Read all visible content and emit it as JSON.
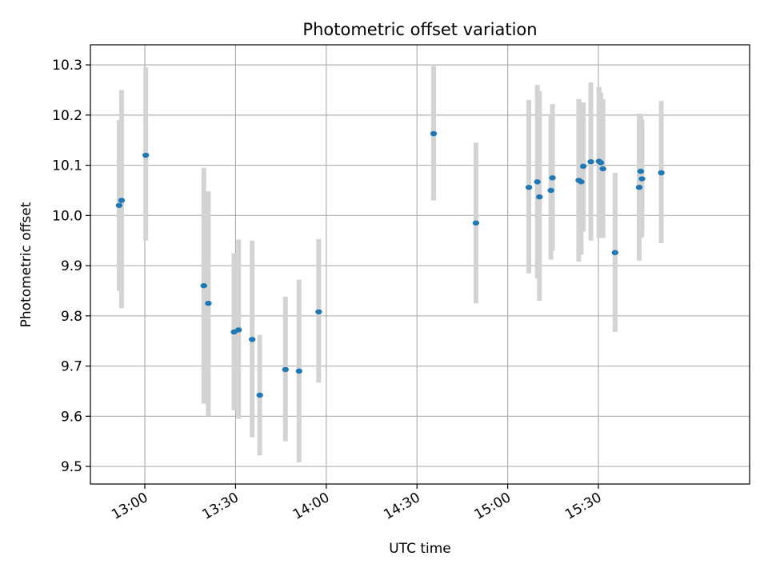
{
  "chart_data": {
    "type": "scatter",
    "title": "Photometric offset variation",
    "xlabel": "UTC time",
    "ylabel": "Photometric offset",
    "xlim": [
      "12:42",
      "16:20"
    ],
    "ylim": [
      9.465,
      10.34
    ],
    "grid": true,
    "x_ticks": [
      "13:00",
      "13:30",
      "14:00",
      "14:30",
      "15:00",
      "15:30"
    ],
    "y_ticks": [
      "9.5",
      "9.6",
      "9.7",
      "9.8",
      "9.9",
      "10.0",
      "10.1",
      "10.2",
      "10.3"
    ],
    "colors": {
      "point": "#1f77b4",
      "errorbar": "#d3d3d3",
      "grid": "#b0b0b0"
    },
    "points": [
      {
        "x": "12:51.5",
        "y": 10.02,
        "ylow": 9.85,
        "yhigh": 10.19
      },
      {
        "x": "12:52.3",
        "y": 10.03,
        "ylow": 9.815,
        "yhigh": 10.25
      },
      {
        "x": "13:00.3",
        "y": 10.12,
        "ylow": 9.95,
        "yhigh": 10.295
      },
      {
        "x": "13:19.5",
        "y": 9.86,
        "ylow": 9.625,
        "yhigh": 10.095
      },
      {
        "x": "13:21.0",
        "y": 9.825,
        "ylow": 9.6,
        "yhigh": 10.048
      },
      {
        "x": "13:29.5",
        "y": 9.768,
        "ylow": 9.612,
        "yhigh": 9.925
      },
      {
        "x": "13:31.0",
        "y": 9.772,
        "ylow": 9.595,
        "yhigh": 9.952
      },
      {
        "x": "13:35.5",
        "y": 9.753,
        "ylow": 9.558,
        "yhigh": 9.95
      },
      {
        "x": "13:38.0",
        "y": 9.642,
        "ylow": 9.522,
        "yhigh": 9.762
      },
      {
        "x": "13:46.5",
        "y": 9.693,
        "ylow": 9.55,
        "yhigh": 9.838
      },
      {
        "x": "13:51.0",
        "y": 9.69,
        "ylow": 9.508,
        "yhigh": 9.872
      },
      {
        "x": "13:57.5",
        "y": 9.808,
        "ylow": 9.667,
        "yhigh": 9.953
      },
      {
        "x": "14:35.5",
        "y": 10.163,
        "ylow": 10.03,
        "yhigh": 10.298
      },
      {
        "x": "14:49.5",
        "y": 9.985,
        "ylow": 9.825,
        "yhigh": 10.145
      },
      {
        "x": "15:07.0",
        "y": 10.056,
        "ylow": 9.885,
        "yhigh": 10.23
      },
      {
        "x": "15:09.8",
        "y": 10.067,
        "ylow": 9.875,
        "yhigh": 10.26
      },
      {
        "x": "15:10.5",
        "y": 10.037,
        "ylow": 9.83,
        "yhigh": 10.248
      },
      {
        "x": "15:14.3",
        "y": 10.05,
        "ylow": 9.912,
        "yhigh": 10.2
      },
      {
        "x": "15:14.8",
        "y": 10.075,
        "ylow": 9.93,
        "yhigh": 10.222
      },
      {
        "x": "15:23.5",
        "y": 10.07,
        "ylow": 9.908,
        "yhigh": 10.232
      },
      {
        "x": "15:24.3",
        "y": 10.067,
        "ylow": 9.922,
        "yhigh": 10.215
      },
      {
        "x": "15:25.0",
        "y": 10.098,
        "ylow": 9.968,
        "yhigh": 10.225
      },
      {
        "x": "15:27.5",
        "y": 10.107,
        "ylow": 9.95,
        "yhigh": 10.265
      },
      {
        "x": "15:30.2",
        "y": 10.108,
        "ylow": 9.955,
        "yhigh": 10.256
      },
      {
        "x": "15:30.8",
        "y": 10.105,
        "ylow": 9.955,
        "yhigh": 10.245
      },
      {
        "x": "15:31.5",
        "y": 10.093,
        "ylow": 9.955,
        "yhigh": 10.232
      },
      {
        "x": "15:35.5",
        "y": 9.926,
        "ylow": 9.768,
        "yhigh": 10.085
      },
      {
        "x": "15:43.5",
        "y": 10.056,
        "ylow": 9.91,
        "yhigh": 10.203
      },
      {
        "x": "15:44.0",
        "y": 10.088,
        "ylow": 9.955,
        "yhigh": 10.2
      },
      {
        "x": "15:44.4",
        "y": 10.073,
        "ylow": 9.958,
        "yhigh": 10.192
      },
      {
        "x": "15:50.8",
        "y": 10.085,
        "ylow": 9.945,
        "yhigh": 10.228
      }
    ]
  }
}
